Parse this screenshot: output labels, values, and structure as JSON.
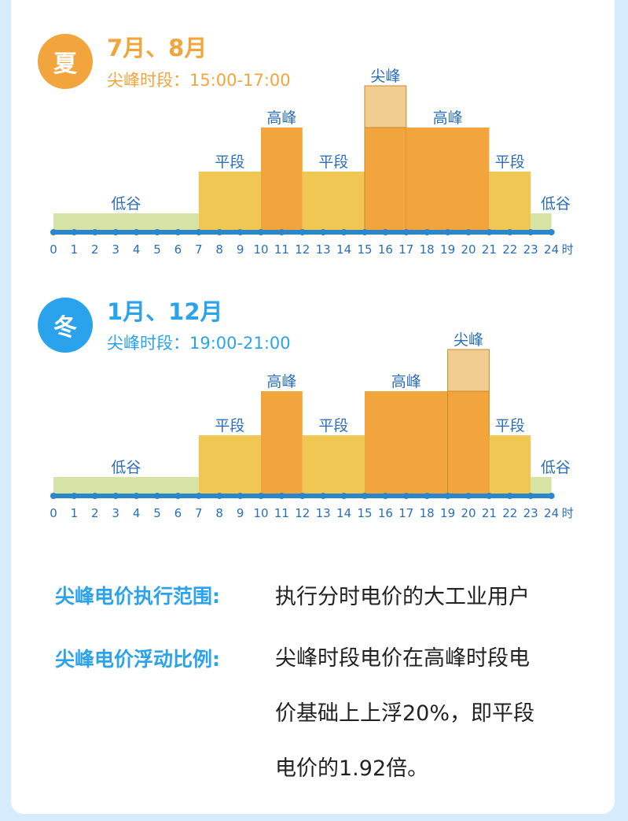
{
  "summer": {
    "badge": "夏",
    "months": "7月、8月",
    "peak_label": "尖峰时段：15:00-17:00",
    "color": "#f2a53c"
  },
  "winter": {
    "badge": "冬",
    "months": "1月、12月",
    "peak_label": "尖峰时段：19:00-21:00",
    "color": "#2ba3ec"
  },
  "colors": {
    "low": "#d5e3a4",
    "flat": "#f0c752",
    "high": "#f2a53c",
    "peak_top": "#f2cd92",
    "axis": "#2b87c9",
    "label": "#2b6fb8"
  },
  "chart_data": [
    {
      "type": "bar",
      "title": "7月、8月",
      "x_ticks": [
        "0",
        "1",
        "2",
        "3",
        "4",
        "5",
        "6",
        "7",
        "8",
        "9",
        "10",
        "11",
        "12",
        "13",
        "14",
        "15",
        "16",
        "17",
        "18",
        "19",
        "20",
        "21",
        "22",
        "23",
        "24"
      ],
      "x_unit": "时",
      "level_order": [
        "低谷",
        "平段",
        "高峰",
        "尖峰"
      ],
      "segments": [
        {
          "start": 0,
          "end": 7,
          "level": "低谷"
        },
        {
          "start": 7,
          "end": 10,
          "level": "平段"
        },
        {
          "start": 10,
          "end": 12,
          "level": "高峰"
        },
        {
          "start": 12,
          "end": 15,
          "level": "平段"
        },
        {
          "start": 15,
          "end": 17,
          "level": "尖峰"
        },
        {
          "start": 17,
          "end": 21,
          "level": "高峰"
        },
        {
          "start": 21,
          "end": 23,
          "level": "平段"
        },
        {
          "start": 23,
          "end": 24,
          "level": "低谷"
        }
      ]
    },
    {
      "type": "bar",
      "title": "1月、12月",
      "x_ticks": [
        "0",
        "1",
        "2",
        "3",
        "4",
        "5",
        "6",
        "7",
        "8",
        "9",
        "10",
        "11",
        "12",
        "13",
        "14",
        "15",
        "16",
        "17",
        "18",
        "19",
        "20",
        "21",
        "22",
        "23",
        "24"
      ],
      "x_unit": "时",
      "level_order": [
        "低谷",
        "平段",
        "高峰",
        "尖峰"
      ],
      "segments": [
        {
          "start": 0,
          "end": 7,
          "level": "低谷"
        },
        {
          "start": 7,
          "end": 10,
          "level": "平段"
        },
        {
          "start": 10,
          "end": 12,
          "level": "高峰"
        },
        {
          "start": 12,
          "end": 15,
          "level": "平段"
        },
        {
          "start": 15,
          "end": 19,
          "level": "高峰"
        },
        {
          "start": 19,
          "end": 21,
          "level": "尖峰"
        },
        {
          "start": 21,
          "end": 23,
          "level": "平段"
        },
        {
          "start": 23,
          "end": 24,
          "level": "低谷"
        }
      ]
    }
  ],
  "info": {
    "scope_label": "尖峰电价执行范围:",
    "scope_text": "执行分时电价的大工业用户",
    "ratio_label": "尖峰电价浮动比例:",
    "ratio_lines": [
      "尖峰时段电价在高峰时段电",
      "价基础上上浮20%，即平段",
      "电价的1.92倍。"
    ]
  }
}
